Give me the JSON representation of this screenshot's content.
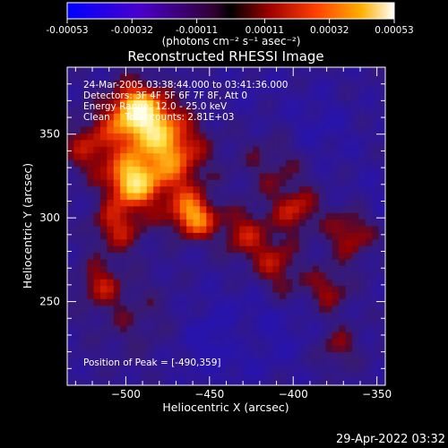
{
  "colorbar": {
    "tick_labels": [
      "-0.00053",
      "-0.00032",
      "-0.00011",
      "0.00011",
      "0.00032",
      "0.00053"
    ],
    "unit_label": "(photons cm⁻² s⁻¹ asec⁻²)",
    "range": [
      -0.00053,
      0.00053
    ]
  },
  "title": "Reconstructed RHESSI Image",
  "info": {
    "line1": "24-Mar-2005 03:38:44.000 to 03:41:36.000",
    "line2": "Detectors: 3F 4F 5F 6F 7F 8F, Att 0",
    "line3": "Energy Range: 12.0 - 25.0 keV",
    "line4": "Clean     Total counts: 2.81E+03"
  },
  "peak_label": "Position of Peak = [-490,359]",
  "axes": {
    "xlabel": "Heliocentric X (arcsec)",
    "ylabel": "Heliocentric Y (arcsec)",
    "xlim": [
      -535,
      -345
    ],
    "ylim": [
      200,
      390
    ],
    "xticks": [
      -500,
      -450,
      -400,
      -350
    ],
    "yticks": [
      250,
      300,
      350
    ],
    "xtick_labels": [
      "−500",
      "−450",
      "−400",
      "−350"
    ],
    "ytick_labels": [
      "250",
      "300",
      "350"
    ]
  },
  "timestamp": "29-Apr-2022 03:32",
  "colors": {
    "background": "#000000",
    "text": "#ffffff"
  }
}
